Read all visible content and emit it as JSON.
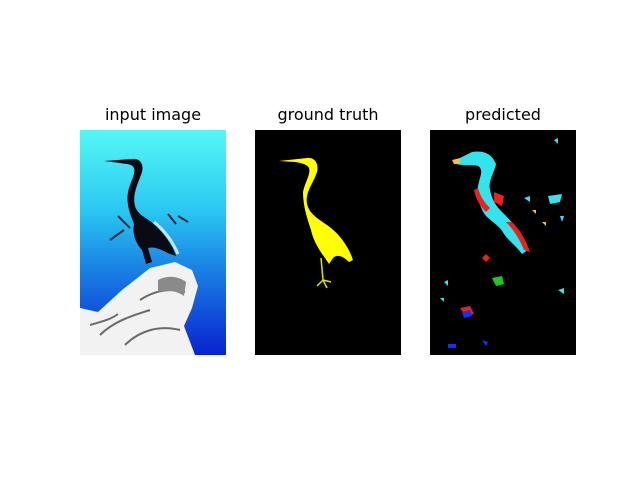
{
  "panels": [
    {
      "title": "input image"
    },
    {
      "title": "ground truth"
    },
    {
      "title": "predicted"
    }
  ],
  "colors": {
    "background": "#ffffff",
    "water_top": "#55f7f5",
    "water_mid": "#1aa6ee",
    "water_bottom": "#0a2bd9",
    "mask_bird": "#ffff00",
    "mask_background": "#000000",
    "pred_cyan": "#33e3ee",
    "pred_red": "#e4241d",
    "pred_yellow": "#f3c23a",
    "pred_blue": "#1c2ef2",
    "pred_green": "#1ec81e"
  }
}
